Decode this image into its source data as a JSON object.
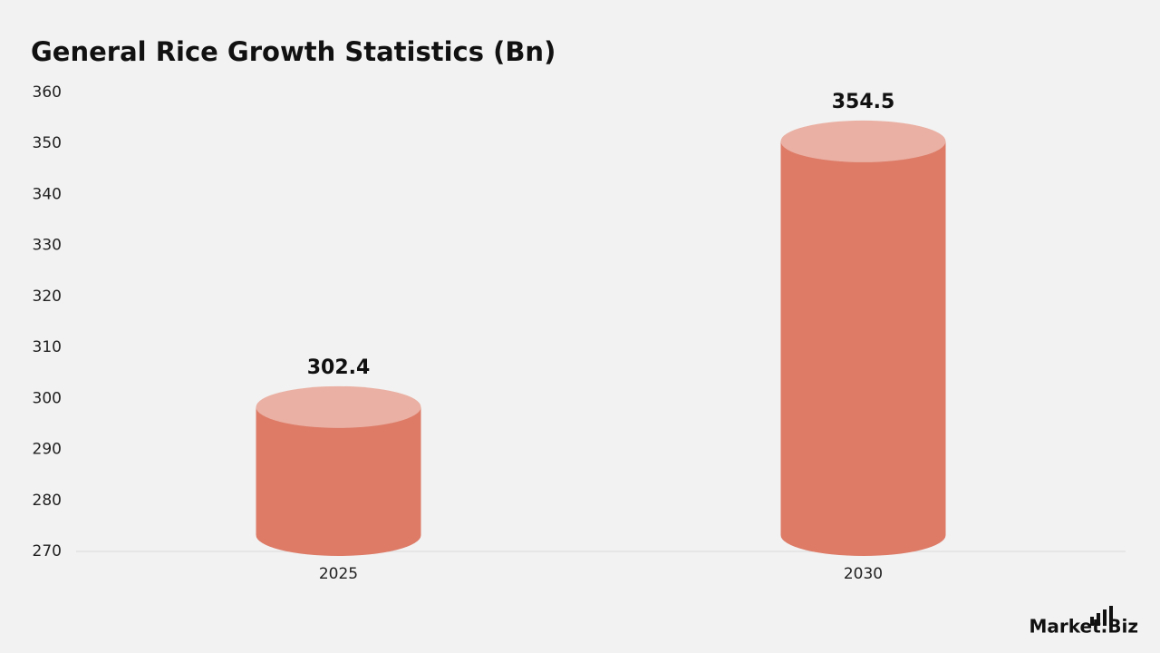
{
  "chart_data": {
    "type": "cylinder",
    "title": "General Rice Growth Statistics (Bn)",
    "categories": [
      "2025",
      "2030"
    ],
    "values": [
      302.4,
      354.5
    ],
    "color": "#dd7b67",
    "top_color": "#eab0a3",
    "ylim": [
      270,
      360
    ],
    "yticks": [
      270,
      280,
      290,
      300,
      310,
      320,
      330,
      340,
      350,
      360
    ],
    "grid": false
  },
  "brand": "Market.Biz"
}
